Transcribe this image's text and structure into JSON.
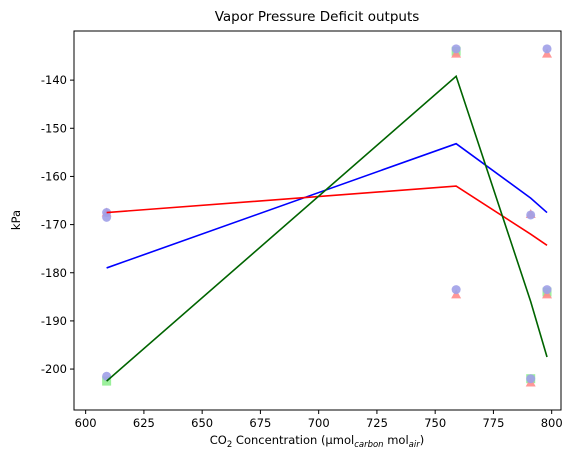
{
  "chart_data": {
    "type": "line",
    "title": "Vapor Pressure Deficit outputs",
    "xlabel": [
      "CO",
      "2",
      " Concentration (μmol",
      "carbon",
      " mol",
      "air",
      ")"
    ],
    "xlabel_sub": [
      false,
      true,
      false,
      true,
      false,
      true,
      false
    ],
    "ylabel": "kPa",
    "xlim": [
      595,
      804
    ],
    "ylim": [
      -208.5,
      -129.8
    ],
    "xticks": [
      600,
      625,
      650,
      675,
      700,
      725,
      750,
      775,
      800
    ],
    "yticks": [
      -200,
      -190,
      -180,
      -170,
      -160,
      -150,
      -140
    ],
    "series": [
      {
        "type": "scatter",
        "marker": "s",
        "color": "#90ee90",
        "x": [
          609,
          759,
          791,
          798
        ],
        "values": [
          -202.5,
          -134,
          -202,
          -184
        ]
      },
      {
        "type": "scatter",
        "marker": "^",
        "color": "#ff8c8c",
        "x": [
          609,
          759,
          759,
          791,
          791,
          798,
          798
        ],
        "values": [
          -167.5,
          -134.5,
          -184.5,
          -167.8,
          -202.8,
          -134.5,
          -184.5
        ]
      },
      {
        "type": "scatter",
        "marker": "o",
        "color": "#a0a0e8",
        "x": [
          609,
          609,
          609,
          759,
          759,
          791,
          791,
          798,
          798
        ],
        "values": [
          -167.5,
          -168.5,
          -201.5,
          -133.5,
          -183.5,
          -168,
          -202,
          -133.5,
          -183.5
        ]
      },
      {
        "type": "line",
        "color": "#0000ff",
        "x": [
          609,
          759,
          791,
          798
        ],
        "values": [
          -179,
          -153.2,
          -164.5,
          -167.5
        ]
      },
      {
        "type": "line",
        "color": "#ff0000",
        "x": [
          609,
          759,
          791,
          798
        ],
        "values": [
          -167.5,
          -162,
          -172,
          -174.3
        ]
      },
      {
        "type": "line",
        "color": "#006400",
        "x": [
          609,
          759,
          791,
          798
        ],
        "values": [
          -202.5,
          -139.2,
          -186,
          -197.5
        ]
      }
    ]
  }
}
